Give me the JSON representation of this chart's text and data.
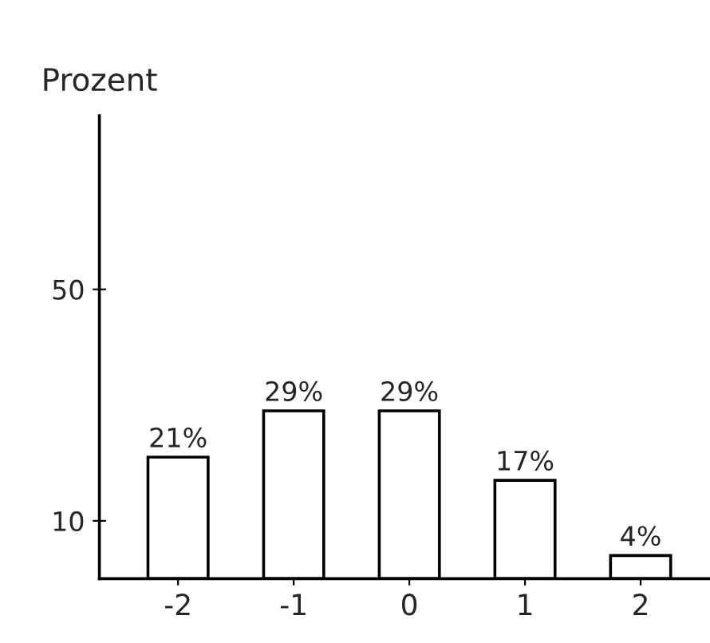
{
  "chart_data": {
    "type": "bar",
    "ylabel": "Prozent",
    "categories": [
      "-2",
      "-1",
      "0",
      "1",
      "2"
    ],
    "values": [
      21,
      29,
      29,
      17,
      4
    ],
    "value_labels": [
      "21%",
      "29%",
      "29%",
      "17%",
      "4%"
    ],
    "color": "#ffffff",
    "ylim": [
      0,
      80
    ],
    "yticks": [
      10,
      50
    ],
    "grid": false,
    "legend": false
  }
}
